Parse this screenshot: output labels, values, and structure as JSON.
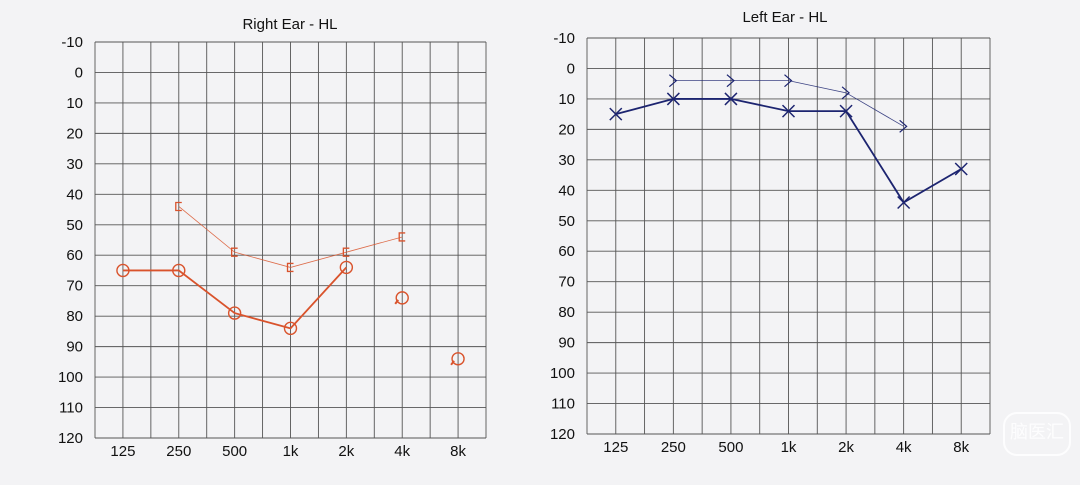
{
  "chart_data": [
    {
      "type": "line",
      "title": "Right Ear - HL",
      "categories": [
        "125",
        "250",
        "500",
        "1k",
        "2k",
        "4k",
        "8k"
      ],
      "ylim": [
        -10,
        120
      ],
      "y_ticks": [
        -10,
        0,
        10,
        20,
        30,
        40,
        50,
        60,
        70,
        80,
        90,
        100,
        110,
        120
      ],
      "y_inverted": true,
      "grid": true,
      "color": "#d9532c",
      "series": [
        {
          "style": "thin",
          "marker": "bracket",
          "values": [
            null,
            44,
            59,
            64,
            59,
            54,
            null
          ]
        },
        {
          "style": "thick",
          "marker": "circle",
          "values": [
            65,
            65,
            79,
            84,
            64,
            null,
            null
          ]
        },
        {
          "style": "points",
          "marker": "circle-arrow",
          "values": [
            null,
            null,
            null,
            null,
            null,
            74,
            94
          ]
        }
      ]
    },
    {
      "type": "line",
      "title": "Left Ear - HL",
      "categories": [
        "125",
        "250",
        "500",
        "1k",
        "2k",
        "4k",
        "8k"
      ],
      "ylim": [
        -10,
        120
      ],
      "y_ticks": [
        -10,
        0,
        10,
        20,
        30,
        40,
        50,
        60,
        70,
        80,
        90,
        100,
        110,
        120
      ],
      "y_inverted": true,
      "grid": true,
      "color": "#1c2470",
      "series": [
        {
          "style": "thin",
          "marker": "chevron",
          "values": [
            null,
            4,
            4,
            4,
            8,
            19,
            null
          ]
        },
        {
          "style": "thick",
          "marker": "cross",
          "values": [
            15,
            10,
            10,
            14,
            14,
            44,
            33
          ]
        }
      ]
    }
  ],
  "watermark": "脑医汇"
}
